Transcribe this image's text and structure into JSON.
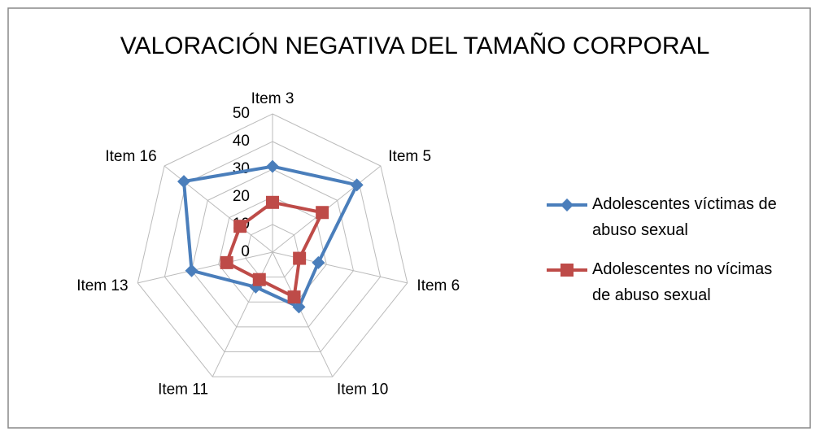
{
  "chart_data": {
    "type": "radar",
    "title": "VALORACIÓN NEGATIVA DEL TAMAÑO CORPORAL",
    "categories": [
      "Item 3",
      "Item 5",
      "Item 6",
      "Item 10",
      "Item 11",
      "Item 13",
      "Item 16"
    ],
    "series": [
      {
        "name": "Adolescentes víctimas de abuso sexual",
        "color": "#4a7ebb",
        "marker": "diamond",
        "values": [
          31,
          39,
          17,
          22,
          14,
          30,
          41
        ]
      },
      {
        "name": "Adolescentes no vícimas de abuso sexual",
        "color": "#be4b48",
        "marker": "square",
        "values": [
          18,
          23,
          10,
          18,
          11,
          17,
          15
        ]
      }
    ],
    "ylim": [
      0,
      50
    ],
    "yticks": [
      0,
      10,
      20,
      30,
      40,
      50
    ],
    "grid": true,
    "legend": "right"
  }
}
